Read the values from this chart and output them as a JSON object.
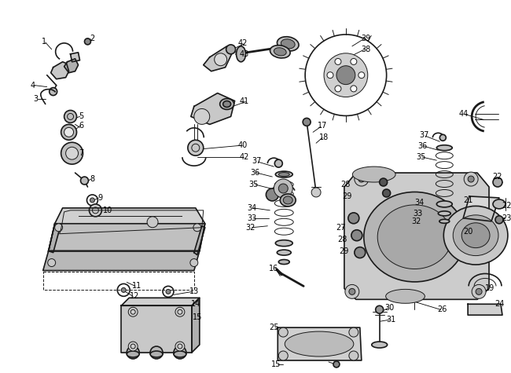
{
  "background_color": "#ffffff",
  "fig_width": 6.5,
  "fig_height": 4.75,
  "dpi": 100,
  "line_color": "#1a1a1a",
  "label_fontsize": 7,
  "label_color": "#000000",
  "lw_main": 1.2,
  "lw_thin": 0.7,
  "lw_thick": 2.0
}
